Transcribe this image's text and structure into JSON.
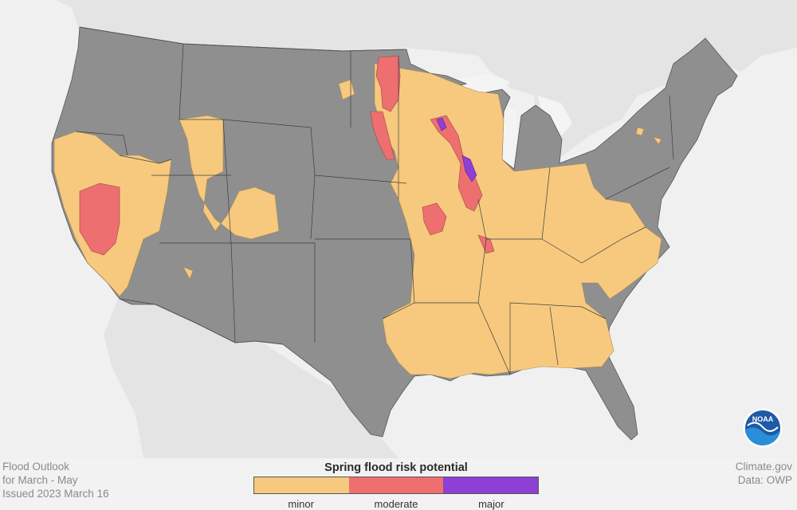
{
  "caption": {
    "line1": "Flood Outlook",
    "line2": "for March - May",
    "line3": "Issued 2023 March 16"
  },
  "credit": {
    "line1": "Climate.gov",
    "line2": "Data: OWP"
  },
  "logo": {
    "text": "NOAA"
  },
  "legend": {
    "title": "Spring flood risk potential",
    "categories": [
      {
        "label": "minor",
        "color": "#f6c97e"
      },
      {
        "label": "moderate",
        "color": "#ee6f6f"
      },
      {
        "label": "major",
        "color": "#8e3fd6"
      }
    ]
  },
  "colors": {
    "land": "#8f8f8f",
    "background": "#f2f2f2",
    "water": "#f2f2f2",
    "borders": "#3a3a3a"
  }
}
